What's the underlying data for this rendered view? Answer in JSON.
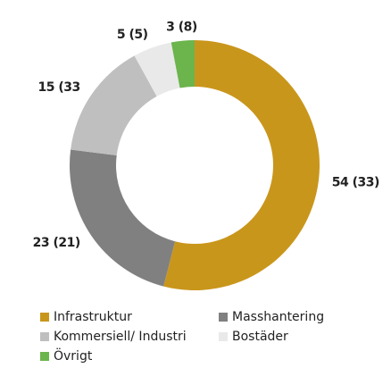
{
  "chart_data": {
    "type": "donut",
    "categories": [
      "Infrastruktur",
      "Masshantering",
      "Kommersiell/ Industri",
      "Bostäder",
      "Övrigt"
    ],
    "values": [
      54,
      23,
      15,
      5,
      3
    ],
    "value_labels": [
      "54 (33)",
      "23 (21)",
      "15 (33",
      "5 (5)",
      "3 (8)"
    ],
    "colors": [
      "#c9961c",
      "#808080",
      "#bfbfbf",
      "#e9e9e9",
      "#6cb44c"
    ]
  }
}
